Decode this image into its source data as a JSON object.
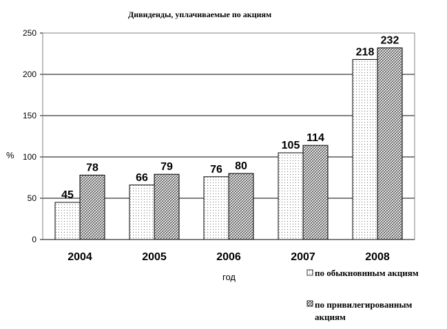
{
  "chart_data": {
    "type": "bar",
    "title": "Дивиденды, уплачиваемые по акциям",
    "xlabel": "год",
    "ylabel": "%",
    "categories": [
      "2004",
      "2005",
      "2006",
      "2007",
      "2008"
    ],
    "series": [
      {
        "name": "по обыкновнным акциям",
        "values": [
          45,
          66,
          76,
          105,
          218
        ],
        "pattern": "dots"
      },
      {
        "name": "по привилегированным акциям",
        "values": [
          78,
          79,
          80,
          114,
          232
        ],
        "pattern": "hatch"
      }
    ],
    "ylim": [
      0,
      250
    ],
    "yticks": [
      0,
      50,
      100,
      150,
      200,
      250
    ],
    "grid": true,
    "legend_position": "bottom-right",
    "colors": {
      "bar_fill": "#ffffff",
      "bar_stroke": "#000000",
      "pattern": "#555555"
    }
  }
}
